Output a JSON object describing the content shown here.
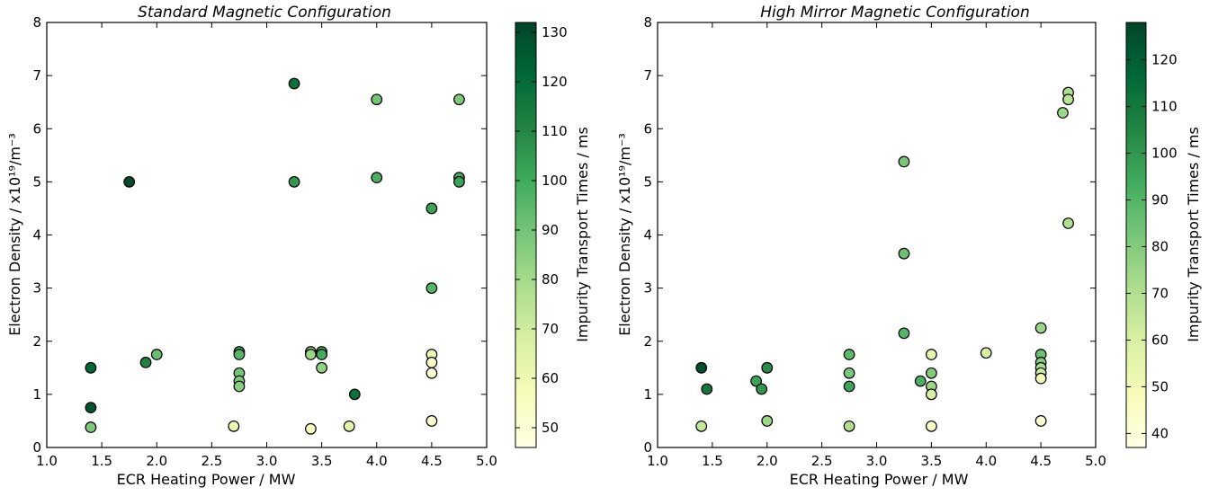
{
  "chart_data": [
    {
      "type": "scatter",
      "title": "Standard Magnetic Configuration",
      "xlabel": "ECR  Heating Power / MW",
      "ylabel": "Electron Density / x10¹⁹/m⁻³",
      "xlim": [
        1.0,
        5.0
      ],
      "ylim": [
        0,
        8
      ],
      "xticks": [
        "1.0",
        "1.5",
        "2.0",
        "2.5",
        "3.0",
        "3.5",
        "4.0",
        "4.5",
        "5.0"
      ],
      "yticks": [
        "0",
        "1",
        "2",
        "3",
        "4",
        "5",
        "6",
        "7",
        "8"
      ],
      "colorbar": {
        "label": "Impurity Transport Times / ms",
        "range": [
          46,
          132
        ],
        "ticks": [
          "50",
          "60",
          "70",
          "80",
          "90",
          "100",
          "110",
          "120",
          "130"
        ],
        "colormap": "YlGn"
      },
      "points": [
        {
          "x": 1.4,
          "y": 1.5,
          "c": 122
        },
        {
          "x": 1.4,
          "y": 0.75,
          "c": 127
        },
        {
          "x": 1.4,
          "y": 0.38,
          "c": 88
        },
        {
          "x": 1.75,
          "y": 5.0,
          "c": 130
        },
        {
          "x": 1.9,
          "y": 1.6,
          "c": 112
        },
        {
          "x": 2.0,
          "y": 1.75,
          "c": 92
        },
        {
          "x": 2.7,
          "y": 0.4,
          "c": 60
        },
        {
          "x": 2.75,
          "y": 1.8,
          "c": 98
        },
        {
          "x": 2.75,
          "y": 1.75,
          "c": 96
        },
        {
          "x": 2.75,
          "y": 1.4,
          "c": 90
        },
        {
          "x": 2.75,
          "y": 1.25,
          "c": 88
        },
        {
          "x": 2.75,
          "y": 1.15,
          "c": 86
        },
        {
          "x": 3.25,
          "y": 6.85,
          "c": 118
        },
        {
          "x": 3.25,
          "y": 5.0,
          "c": 105
        },
        {
          "x": 3.4,
          "y": 1.8,
          "c": 85
        },
        {
          "x": 3.4,
          "y": 1.75,
          "c": 82
        },
        {
          "x": 3.4,
          "y": 0.35,
          "c": 56
        },
        {
          "x": 3.5,
          "y": 1.8,
          "c": 97
        },
        {
          "x": 3.5,
          "y": 1.75,
          "c": 99
        },
        {
          "x": 3.5,
          "y": 1.5,
          "c": 84
        },
        {
          "x": 3.75,
          "y": 0.4,
          "c": 64
        },
        {
          "x": 3.8,
          "y": 1.0,
          "c": 118
        },
        {
          "x": 4.0,
          "y": 6.55,
          "c": 90
        },
        {
          "x": 4.0,
          "y": 5.08,
          "c": 98
        },
        {
          "x": 4.5,
          "y": 4.5,
          "c": 102
        },
        {
          "x": 4.5,
          "y": 3.0,
          "c": 96
        },
        {
          "x": 4.5,
          "y": 1.75,
          "c": 60
        },
        {
          "x": 4.5,
          "y": 1.6,
          "c": 53
        },
        {
          "x": 4.5,
          "y": 1.4,
          "c": 50
        },
        {
          "x": 4.5,
          "y": 0.5,
          "c": 52
        },
        {
          "x": 4.75,
          "y": 6.55,
          "c": 88
        },
        {
          "x": 4.75,
          "y": 5.08,
          "c": 100
        },
        {
          "x": 4.75,
          "y": 5.0,
          "c": 102
        }
      ]
    },
    {
      "type": "scatter",
      "title": "High Mirror Magnetic Configuration",
      "xlabel": "ECR  Heating Power / MW",
      "ylabel": "Electron Density / x10¹⁹/m⁻³",
      "xlim": [
        1.0,
        5.0
      ],
      "ylim": [
        0,
        8
      ],
      "xticks": [
        "1.0",
        "1.5",
        "2.0",
        "2.5",
        "3.0",
        "3.5",
        "4.0",
        "4.5",
        "5.0"
      ],
      "yticks": [
        "0",
        "1",
        "2",
        "3",
        "4",
        "5",
        "6",
        "7",
        "8"
      ],
      "colorbar": {
        "label": "Impurity Transport Times / ms",
        "range": [
          37,
          128
        ],
        "ticks": [
          "40",
          "50",
          "60",
          "70",
          "80",
          "90",
          "100",
          "110",
          "120"
        ],
        "colormap": "YlGn"
      },
      "points": [
        {
          "x": 1.4,
          "y": 1.5,
          "c": 125
        },
        {
          "x": 1.4,
          "y": 0.4,
          "c": 65
        },
        {
          "x": 1.45,
          "y": 1.1,
          "c": 110
        },
        {
          "x": 1.9,
          "y": 1.25,
          "c": 96
        },
        {
          "x": 1.95,
          "y": 1.1,
          "c": 100
        },
        {
          "x": 2.0,
          "y": 1.5,
          "c": 103
        },
        {
          "x": 2.0,
          "y": 0.5,
          "c": 75
        },
        {
          "x": 2.75,
          "y": 1.75,
          "c": 88
        },
        {
          "x": 2.75,
          "y": 1.4,
          "c": 82
        },
        {
          "x": 2.75,
          "y": 1.15,
          "c": 96
        },
        {
          "x": 2.75,
          "y": 0.4,
          "c": 70
        },
        {
          "x": 3.25,
          "y": 5.38,
          "c": 82
        },
        {
          "x": 3.25,
          "y": 3.65,
          "c": 85
        },
        {
          "x": 3.25,
          "y": 2.15,
          "c": 90
        },
        {
          "x": 3.4,
          "y": 1.25,
          "c": 92
        },
        {
          "x": 3.5,
          "y": 1.75,
          "c": 55
        },
        {
          "x": 3.5,
          "y": 1.4,
          "c": 80
        },
        {
          "x": 3.5,
          "y": 1.15,
          "c": 75
        },
        {
          "x": 3.5,
          "y": 1.0,
          "c": 60
        },
        {
          "x": 3.5,
          "y": 0.4,
          "c": 45
        },
        {
          "x": 4.0,
          "y": 1.78,
          "c": 60
        },
        {
          "x": 4.5,
          "y": 2.25,
          "c": 75
        },
        {
          "x": 4.5,
          "y": 1.75,
          "c": 85
        },
        {
          "x": 4.5,
          "y": 1.6,
          "c": 80
        },
        {
          "x": 4.5,
          "y": 1.5,
          "c": 72
        },
        {
          "x": 4.5,
          "y": 1.4,
          "c": 62
        },
        {
          "x": 4.5,
          "y": 1.3,
          "c": 50
        },
        {
          "x": 4.5,
          "y": 0.5,
          "c": 42
        },
        {
          "x": 4.7,
          "y": 6.3,
          "c": 75
        },
        {
          "x": 4.75,
          "y": 6.68,
          "c": 70
        },
        {
          "x": 4.75,
          "y": 6.55,
          "c": 68
        },
        {
          "x": 4.75,
          "y": 4.22,
          "c": 70
        }
      ]
    }
  ]
}
